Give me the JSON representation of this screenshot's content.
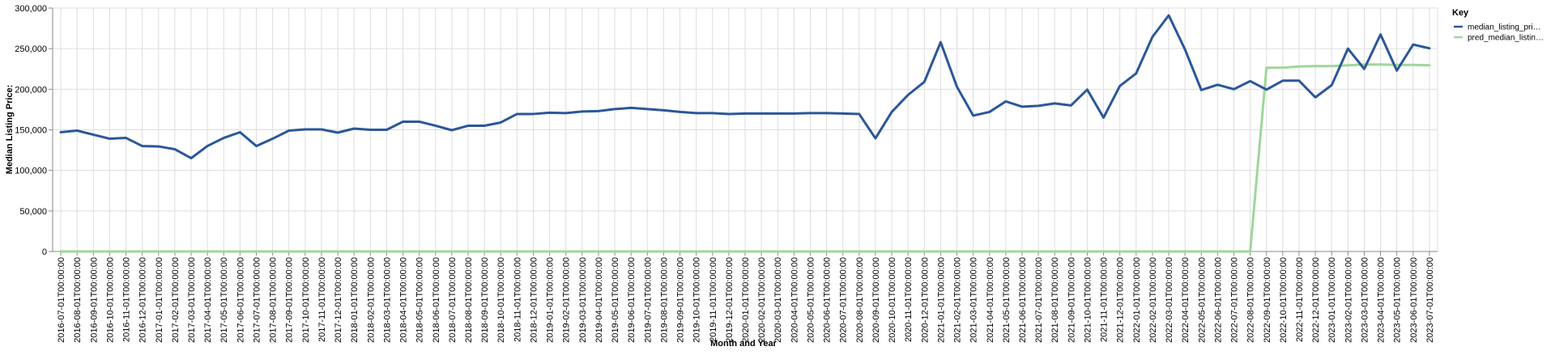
{
  "chart_data": {
    "type": "line",
    "title": "",
    "xlabel": "Month and Year",
    "ylabel": "Median Listing Price:",
    "ylim": [
      0,
      300000
    ],
    "y_ticks": [
      0,
      50000,
      100000,
      150000,
      200000,
      250000,
      300000
    ],
    "y_tick_labels": [
      "0",
      "50,000",
      "100,000",
      "150,000",
      "200,000",
      "250,000",
      "300,000"
    ],
    "grid": true,
    "legend": {
      "title": "Key",
      "placement": "top-right"
    },
    "x": [
      "2016-07-01T00:00:00",
      "2016-08-01T00:00:00",
      "2016-09-01T00:00:00",
      "2016-10-01T00:00:00",
      "2016-11-01T00:00:00",
      "2016-12-01T00:00:00",
      "2017-01-01T00:00:00",
      "2017-02-01T00:00:00",
      "2017-03-01T00:00:00",
      "2017-04-01T00:00:00",
      "2017-05-01T00:00:00",
      "2017-06-01T00:00:00",
      "2017-07-01T00:00:00",
      "2017-08-01T00:00:00",
      "2017-09-01T00:00:00",
      "2017-10-01T00:00:00",
      "2017-11-01T00:00:00",
      "2017-12-01T00:00:00",
      "2018-01-01T00:00:00",
      "2018-02-01T00:00:00",
      "2018-03-01T00:00:00",
      "2018-04-01T00:00:00",
      "2018-05-01T00:00:00",
      "2018-06-01T00:00:00",
      "2018-07-01T00:00:00",
      "2018-08-01T00:00:00",
      "2018-09-01T00:00:00",
      "2018-10-01T00:00:00",
      "2018-11-01T00:00:00",
      "2018-12-01T00:00:00",
      "2019-01-01T00:00:00",
      "2019-02-01T00:00:00",
      "2019-03-01T00:00:00",
      "2019-04-01T00:00:00",
      "2019-05-01T00:00:00",
      "2019-06-01T00:00:00",
      "2019-07-01T00:00:00",
      "2019-08-01T00:00:00",
      "2019-09-01T00:00:00",
      "2019-10-01T00:00:00",
      "2019-11-01T00:00:00",
      "2019-12-01T00:00:00",
      "2020-01-01T00:00:00",
      "2020-02-01T00:00:00",
      "2020-03-01T00:00:00",
      "2020-04-01T00:00:00",
      "2020-05-01T00:00:00",
      "2020-06-01T00:00:00",
      "2020-07-01T00:00:00",
      "2020-08-01T00:00:00",
      "2020-09-01T00:00:00",
      "2020-10-01T00:00:00",
      "2020-11-01T00:00:00",
      "2020-12-01T00:00:00",
      "2021-01-01T00:00:00",
      "2021-02-01T00:00:00",
      "2021-03-01T00:00:00",
      "2021-04-01T00:00:00",
      "2021-05-01T00:00:00",
      "2021-06-01T00:00:00",
      "2021-07-01T00:00:00",
      "2021-08-01T00:00:00",
      "2021-09-01T00:00:00",
      "2021-10-01T00:00:00",
      "2021-11-01T00:00:00",
      "2021-12-01T00:00:00",
      "2022-01-01T00:00:00",
      "2022-02-01T00:00:00",
      "2022-03-01T00:00:00",
      "2022-04-01T00:00:00",
      "2022-05-01T00:00:00",
      "2022-06-01T00:00:00",
      "2022-07-01T00:00:00",
      "2022-08-01T00:00:00",
      "2022-09-01T00:00:00",
      "2022-10-01T00:00:00",
      "2022-11-01T00:00:00",
      "2022-12-01T00:00:00",
      "2023-01-01T00:00:00",
      "2023-02-01T00:00:00",
      "2023-03-01T00:00:00",
      "2023-04-01T00:00:00",
      "2023-05-01T00:00:00",
      "2023-06-01T00:00:00",
      "2023-07-01T00:00:00"
    ],
    "series": [
      {
        "name": "median_listing_pri…",
        "color": "#2b579a",
        "values": [
          147000,
          149000,
          144000,
          139000,
          140000,
          130000,
          129500,
          126000,
          115000,
          130000,
          140000,
          147000,
          130000,
          139000,
          149000,
          150500,
          150500,
          146500,
          151500,
          150000,
          150000,
          160000,
          160000,
          155000,
          149500,
          155000,
          155000,
          159000,
          169500,
          169500,
          171000,
          170500,
          172500,
          173000,
          175500,
          177000,
          175500,
          174000,
          172000,
          170500,
          170500,
          169500,
          170000,
          170000,
          170000,
          170000,
          170500,
          170500,
          170000,
          169500,
          139500,
          172000,
          193000,
          209000,
          258000,
          203000,
          167500,
          172000,
          185000,
          178500,
          179500,
          182500,
          180000,
          199500,
          165000,
          204000,
          219500,
          264500,
          291000,
          249000,
          199000,
          205500,
          200000,
          210000,
          199500,
          210500,
          210500,
          190000,
          205000,
          250000,
          225000,
          267500,
          223000,
          255000,
          250500
        ]
      },
      {
        "name": "pred_median_listin…",
        "color": "#9fd69a",
        "values": [
          0,
          0,
          0,
          0,
          0,
          0,
          0,
          0,
          0,
          0,
          0,
          0,
          0,
          0,
          0,
          0,
          0,
          0,
          0,
          0,
          0,
          0,
          0,
          0,
          0,
          0,
          0,
          0,
          0,
          0,
          0,
          0,
          0,
          0,
          0,
          0,
          0,
          0,
          0,
          0,
          0,
          0,
          0,
          0,
          0,
          0,
          0,
          0,
          0,
          0,
          0,
          0,
          0,
          0,
          0,
          0,
          0,
          0,
          0,
          0,
          0,
          0,
          0,
          0,
          0,
          0,
          0,
          0,
          0,
          0,
          0,
          0,
          0,
          0,
          226500,
          226500,
          228000,
          228500,
          228500,
          229500,
          230500,
          230500,
          230000,
          230000,
          229500
        ]
      }
    ]
  }
}
